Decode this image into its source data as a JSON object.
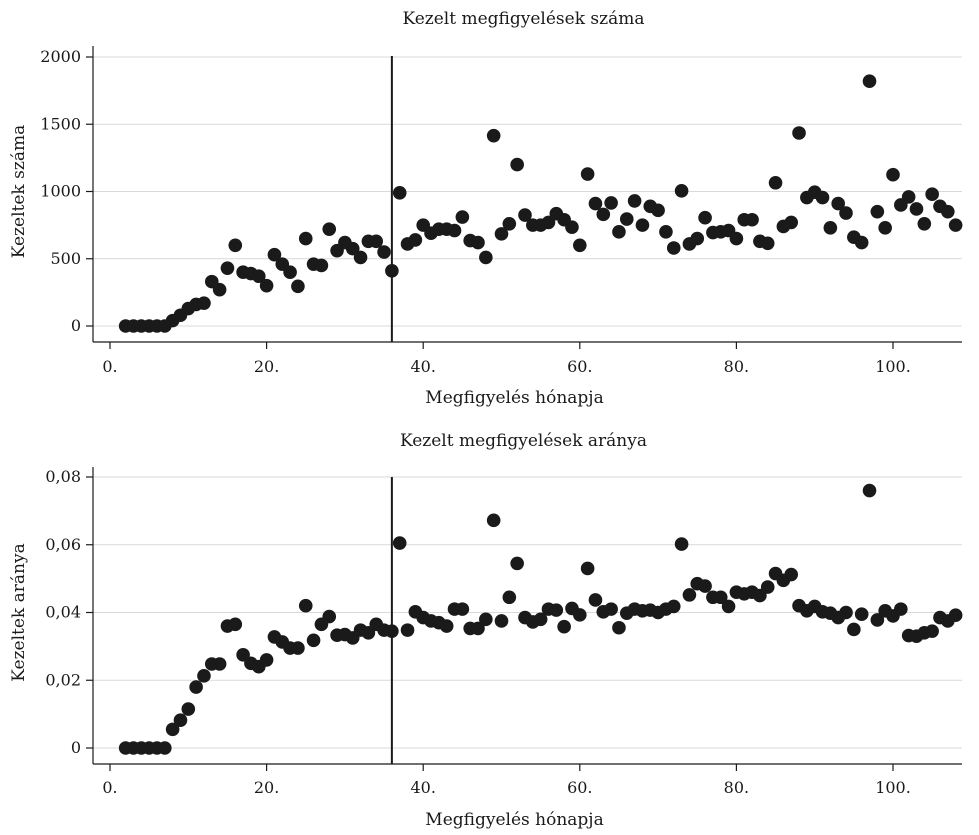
{
  "chart_data": [
    {
      "type": "scatter",
      "title": "Kezelt megfigyelések száma",
      "xlabel": "Megfigyelés hónapja",
      "ylabel": "Kezeltek száma",
      "xlim": [
        0,
        108
      ],
      "ylim": [
        0,
        2000
      ],
      "xticks": [
        0,
        20,
        40,
        60,
        80,
        100
      ],
      "xtick_labels": [
        "0.",
        "20.",
        "40.",
        "60.",
        "80.",
        "100."
      ],
      "yticks": [
        0,
        500,
        1000,
        1500,
        2000
      ],
      "ytick_labels": [
        "0",
        "500",
        "1000",
        "1500",
        "2000"
      ],
      "grid": "horizontal",
      "reference_line_x": 36,
      "color": "#1a1a1a",
      "x": [
        2,
        3,
        4,
        5,
        6,
        7,
        8,
        9,
        10,
        11,
        12,
        13,
        14,
        15,
        16,
        17,
        18,
        19,
        20,
        21,
        22,
        23,
        24,
        25,
        26,
        27,
        28,
        29,
        30,
        31,
        32,
        33,
        34,
        35,
        36,
        37,
        38,
        39,
        40,
        41,
        42,
        43,
        44,
        45,
        46,
        47,
        48,
        49,
        50,
        51,
        52,
        53,
        54,
        55,
        56,
        57,
        58,
        59,
        60,
        61,
        62,
        63,
        64,
        65,
        66,
        67,
        68,
        69,
        70,
        71,
        72,
        73,
        74,
        75,
        76,
        77,
        78,
        79,
        80,
        81,
        82,
        83,
        84,
        85,
        86,
        87,
        88,
        89,
        90,
        91,
        92,
        93,
        94,
        95,
        96,
        97,
        98,
        99,
        100,
        101,
        102,
        103,
        104,
        105,
        106,
        107,
        108
      ],
      "y": [
        0,
        0,
        0,
        0,
        0,
        0,
        40,
        80,
        130,
        160,
        170,
        330,
        270,
        430,
        600,
        400,
        390,
        370,
        300,
        530,
        460,
        400,
        295,
        650,
        460,
        450,
        720,
        560,
        620,
        575,
        510,
        630,
        630,
        550,
        410,
        990,
        610,
        640,
        750,
        690,
        720,
        720,
        710,
        810,
        635,
        620,
        510,
        1415,
        685,
        760,
        1200,
        825,
        750,
        750,
        770,
        835,
        790,
        735,
        600,
        1130,
        910,
        830,
        915,
        700,
        795,
        930,
        750,
        890,
        860,
        700,
        580,
        1005,
        610,
        650,
        805,
        695,
        700,
        710,
        650,
        790,
        790,
        630,
        615,
        1065,
        740,
        770,
        1435,
        955,
        995,
        955,
        730,
        910,
        840,
        660,
        620,
        1820,
        850,
        730,
        1125,
        900,
        960,
        870,
        760,
        980,
        890,
        850,
        750
      ]
    },
    {
      "type": "scatter",
      "title": "Kezelt megfigyelések aránya",
      "xlabel": "Megfigyelés hónapja",
      "ylabel": "Kezeltek aránya",
      "xlim": [
        0,
        108
      ],
      "ylim": [
        0,
        0.08
      ],
      "xticks": [
        0,
        20,
        40,
        60,
        80,
        100
      ],
      "xtick_labels": [
        "0.",
        "20.",
        "40.",
        "60.",
        "80.",
        "100."
      ],
      "yticks": [
        0,
        0.02,
        0.04,
        0.06,
        0.08
      ],
      "ytick_labels": [
        "0",
        "0,02",
        "0,04",
        "0,06",
        "0,08"
      ],
      "grid": "horizontal",
      "reference_line_x": 36,
      "color": "#1a1a1a",
      "x": [
        2,
        3,
        4,
        5,
        6,
        7,
        8,
        9,
        10,
        11,
        12,
        13,
        14,
        15,
        16,
        17,
        18,
        19,
        20,
        21,
        22,
        23,
        24,
        25,
        26,
        27,
        28,
        29,
        30,
        31,
        32,
        33,
        34,
        35,
        36,
        37,
        38,
        39,
        40,
        41,
        42,
        43,
        44,
        45,
        46,
        47,
        48,
        49,
        50,
        51,
        52,
        53,
        54,
        55,
        56,
        57,
        58,
        59,
        60,
        61,
        62,
        63,
        64,
        65,
        66,
        67,
        68,
        69,
        70,
        71,
        72,
        73,
        74,
        75,
        76,
        77,
        78,
        79,
        80,
        81,
        82,
        83,
        84,
        85,
        86,
        87,
        88,
        89,
        90,
        91,
        92,
        93,
        94,
        95,
        96,
        97,
        98,
        99,
        100,
        101,
        102,
        103,
        104,
        105,
        106,
        107,
        108
      ],
      "y": [
        0,
        0,
        0,
        0,
        0,
        0,
        0.0055,
        0.0082,
        0.0115,
        0.018,
        0.0213,
        0.0248,
        0.0248,
        0.036,
        0.0365,
        0.0275,
        0.025,
        0.024,
        0.026,
        0.0328,
        0.0313,
        0.0295,
        0.0295,
        0.042,
        0.0318,
        0.0365,
        0.0388,
        0.0333,
        0.0335,
        0.0325,
        0.0348,
        0.034,
        0.0365,
        0.0348,
        0.0345,
        0.0605,
        0.0348,
        0.0402,
        0.0385,
        0.0375,
        0.037,
        0.036,
        0.041,
        0.041,
        0.0353,
        0.0353,
        0.038,
        0.0672,
        0.0375,
        0.0445,
        0.0545,
        0.0385,
        0.0372,
        0.038,
        0.041,
        0.0407,
        0.0358,
        0.0412,
        0.0393,
        0.053,
        0.0437,
        0.0402,
        0.041,
        0.0355,
        0.0398,
        0.041,
        0.0405,
        0.0407,
        0.04,
        0.041,
        0.0418,
        0.0602,
        0.0452,
        0.0485,
        0.0478,
        0.0445,
        0.0445,
        0.0418,
        0.046,
        0.0455,
        0.046,
        0.045,
        0.0475,
        0.0515,
        0.0495,
        0.0512,
        0.042,
        0.0405,
        0.0418,
        0.0402,
        0.0398,
        0.0385,
        0.04,
        0.035,
        0.0395,
        0.076,
        0.0378,
        0.0405,
        0.039,
        0.041,
        0.0332,
        0.033,
        0.034,
        0.0345,
        0.0385,
        0.0375,
        0.0392
      ]
    }
  ]
}
